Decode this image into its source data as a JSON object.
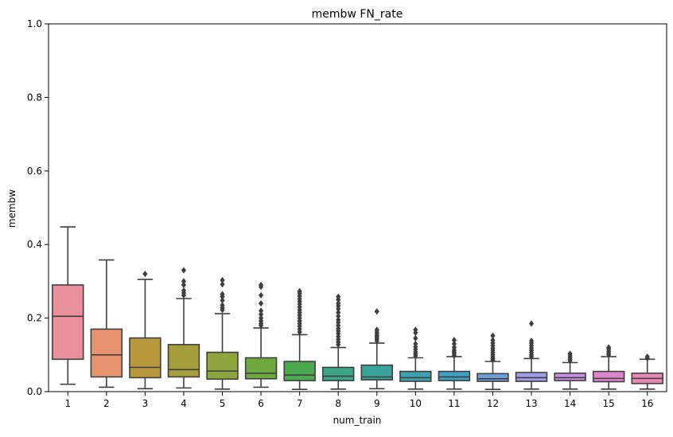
{
  "chart_data": {
    "type": "box",
    "title": "membw FN_rate",
    "xlabel": "num_train",
    "ylabel": "membw",
    "ylim": [
      0,
      1
    ],
    "yticks": [
      0.0,
      0.2,
      0.4,
      0.6,
      0.8,
      1.0
    ],
    "ytick_labels": [
      "0.0",
      "0.2",
      "0.4",
      "0.6",
      "0.8",
      "1.0"
    ],
    "grid": false,
    "legend": "none",
    "categories": [
      "1",
      "2",
      "3",
      "4",
      "5",
      "6",
      "7",
      "8",
      "9",
      "10",
      "11",
      "12",
      "13",
      "14",
      "15",
      "16"
    ],
    "colors": [
      "#E9919C",
      "#E8936F",
      "#B9973D",
      "#A59E3C",
      "#8EA43C",
      "#6EA83F",
      "#4BA950",
      "#3CA685",
      "#3AA39A",
      "#3CA1AD",
      "#3FA0C0",
      "#6C9ED8",
      "#A09CE6",
      "#C98FE4",
      "#DE84CE",
      "#E889B5"
    ],
    "boxes": [
      {
        "label": "1",
        "whislo": 0.02,
        "q1": 0.088,
        "med": 0.205,
        "q3": 0.29,
        "whishi": 0.448,
        "fliers": []
      },
      {
        "label": "2",
        "whislo": 0.012,
        "q1": 0.04,
        "med": 0.1,
        "q3": 0.17,
        "whishi": 0.358,
        "fliers": []
      },
      {
        "label": "3",
        "whislo": 0.008,
        "q1": 0.038,
        "med": 0.066,
        "q3": 0.146,
        "whishi": 0.305,
        "fliers": [
          0.32
        ]
      },
      {
        "label": "4",
        "whislo": 0.01,
        "q1": 0.04,
        "med": 0.06,
        "q3": 0.128,
        "whishi": 0.253,
        "fliers": [
          0.262,
          0.268,
          0.275,
          0.29,
          0.3,
          0.33
        ]
      },
      {
        "label": "5",
        "whislo": 0.007,
        "q1": 0.034,
        "med": 0.056,
        "q3": 0.107,
        "whishi": 0.212,
        "fliers": [
          0.222,
          0.228,
          0.235,
          0.248,
          0.258,
          0.265,
          0.292,
          0.303
        ]
      },
      {
        "label": "6",
        "whislo": 0.012,
        "q1": 0.035,
        "med": 0.05,
        "q3": 0.092,
        "whishi": 0.173,
        "fliers": [
          0.18,
          0.185,
          0.192,
          0.2,
          0.21,
          0.22,
          0.24,
          0.262,
          0.285,
          0.29
        ]
      },
      {
        "label": "7",
        "whislo": 0.006,
        "q1": 0.03,
        "med": 0.045,
        "q3": 0.082,
        "whishi": 0.155,
        "fliers": [
          0.162,
          0.17,
          0.178,
          0.185,
          0.192,
          0.2,
          0.208,
          0.215,
          0.222,
          0.23,
          0.238,
          0.245,
          0.252,
          0.26,
          0.267,
          0.273
        ]
      },
      {
        "label": "8",
        "whislo": 0.007,
        "q1": 0.03,
        "med": 0.042,
        "q3": 0.066,
        "whishi": 0.12,
        "fliers": [
          0.128,
          0.135,
          0.142,
          0.15,
          0.158,
          0.165,
          0.172,
          0.18,
          0.188,
          0.195,
          0.205,
          0.215,
          0.225,
          0.233,
          0.24,
          0.25,
          0.258
        ]
      },
      {
        "label": "9",
        "whislo": 0.008,
        "q1": 0.032,
        "med": 0.04,
        "q3": 0.072,
        "whishi": 0.132,
        "fliers": [
          0.138,
          0.143,
          0.148,
          0.152,
          0.157,
          0.162,
          0.168,
          0.218
        ]
      },
      {
        "label": "10",
        "whislo": 0.007,
        "q1": 0.028,
        "med": 0.038,
        "q3": 0.055,
        "whishi": 0.092,
        "fliers": [
          0.097,
          0.102,
          0.108,
          0.115,
          0.122,
          0.13,
          0.145,
          0.16,
          0.168
        ]
      },
      {
        "label": "11",
        "whislo": 0.007,
        "q1": 0.03,
        "med": 0.04,
        "q3": 0.055,
        "whishi": 0.095,
        "fliers": [
          0.098,
          0.103,
          0.108,
          0.113,
          0.12,
          0.13,
          0.14
        ]
      },
      {
        "label": "12",
        "whislo": 0.006,
        "q1": 0.028,
        "med": 0.035,
        "q3": 0.049,
        "whishi": 0.082,
        "fliers": [
          0.086,
          0.09,
          0.095,
          0.1,
          0.106,
          0.112,
          0.118,
          0.125,
          0.132,
          0.14,
          0.152
        ]
      },
      {
        "label": "13",
        "whislo": 0.007,
        "q1": 0.028,
        "med": 0.038,
        "q3": 0.052,
        "whishi": 0.09,
        "fliers": [
          0.095,
          0.1,
          0.106,
          0.112,
          0.118,
          0.125,
          0.132,
          0.138,
          0.185
        ]
      },
      {
        "label": "14",
        "whislo": 0.007,
        "q1": 0.03,
        "med": 0.038,
        "q3": 0.05,
        "whishi": 0.079,
        "fliers": [
          0.084,
          0.088,
          0.093,
          0.098,
          0.103
        ]
      },
      {
        "label": "15",
        "whislo": 0.007,
        "q1": 0.027,
        "med": 0.036,
        "q3": 0.055,
        "whishi": 0.095,
        "fliers": [
          0.1,
          0.105,
          0.11,
          0.116,
          0.12
        ]
      },
      {
        "label": "16",
        "whislo": 0.007,
        "q1": 0.022,
        "med": 0.036,
        "q3": 0.05,
        "whishi": 0.088,
        "fliers": [
          0.091,
          0.095
        ]
      }
    ]
  }
}
